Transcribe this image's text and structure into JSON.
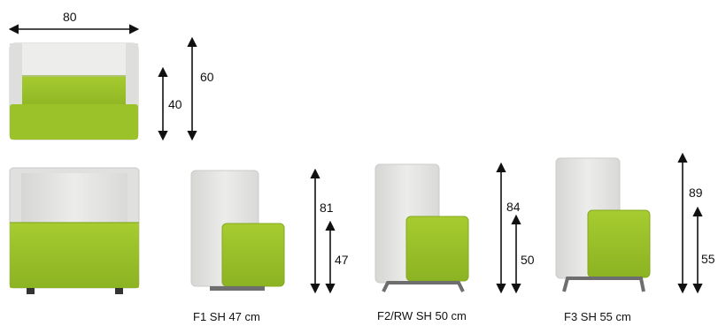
{
  "top_view": {
    "width_label": "80",
    "depth_seat_label": "40",
    "depth_total_label": "60"
  },
  "variants": [
    {
      "caption": "F1  SH 47 cm",
      "height_label": "81",
      "seat_label": "47"
    },
    {
      "caption": "F2/RW  SH 50 cm",
      "height_label": "84",
      "seat_label": "50"
    },
    {
      "caption": "F3  SH 55 cm",
      "height_label": "89",
      "seat_label": "55"
    }
  ],
  "colors": {
    "shell": "#e4e4e2",
    "shell_shade": "#cfcfcc",
    "seat": "#9cc22a",
    "seat_dark": "#7fa41c",
    "frame": "#6e6e6e",
    "arrow": "#111111"
  }
}
